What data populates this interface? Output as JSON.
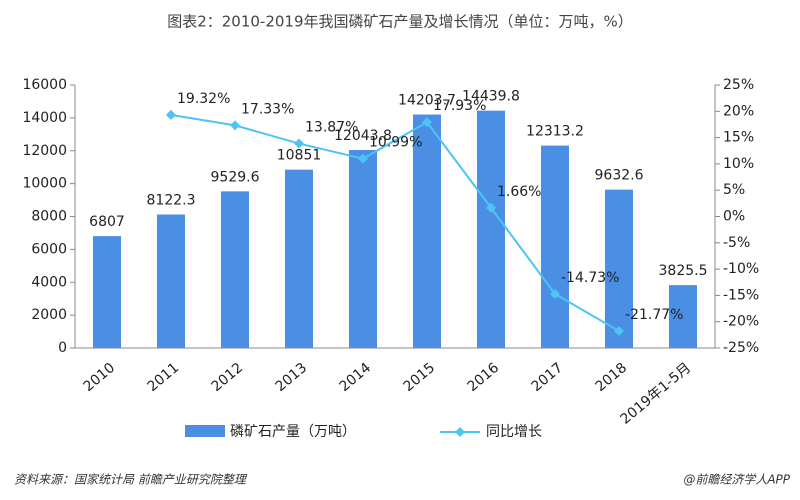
{
  "chart_data": {
    "type": "bar_line",
    "title": "图表2：2010-2019年我国磷矿石产量及增长情况（单位：万吨，%）",
    "categories": [
      "2010",
      "2011",
      "2012",
      "2013",
      "2014",
      "2015",
      "2016",
      "2017",
      "2018",
      "2019年1-5月"
    ],
    "series": [
      {
        "name": "磷矿石产量（万吨）",
        "color": "#4a8fe3",
        "values": [
          6807,
          8122.3,
          9529.6,
          10851,
          12043.8,
          14203.7,
          14439.8,
          12313.2,
          9632.6,
          3825.5
        ]
      },
      {
        "name": "同比增长",
        "color": "#4cc4f4",
        "axis": "y2",
        "values": [
          null,
          19.32,
          17.33,
          13.87,
          10.99,
          17.93,
          1.66,
          -14.73,
          -21.77,
          null
        ],
        "value_labels": [
          null,
          "19.32%",
          "17.33%",
          "13.87%",
          "10.99%",
          "17.93%",
          "1.66%",
          "-14.73%",
          "-21.77%",
          null
        ]
      }
    ],
    "ylim": [
      0,
      16000
    ],
    "yticks": [
      0,
      2000,
      4000,
      6000,
      8000,
      10000,
      12000,
      14000,
      16000
    ],
    "y2lim": [
      -25,
      25
    ],
    "y2ticks": [
      {
        "value": -25,
        "label": "-25%"
      },
      {
        "value": -20,
        "label": "-20%"
      },
      {
        "value": -15,
        "label": "-15%"
      },
      {
        "value": -10,
        "label": "-10%"
      },
      {
        "value": -5,
        "label": "-5%"
      },
      {
        "value": 0,
        "label": "0%"
      },
      {
        "value": 5,
        "label": "5%"
      },
      {
        "value": 10,
        "label": "10%"
      },
      {
        "value": 15,
        "label": "15%"
      },
      {
        "value": 20,
        "label": "20%"
      },
      {
        "value": 25,
        "label": "25%"
      }
    ],
    "source": "资料来源：国家统计局 前瞻产业研究院整理",
    "brand": "@前瞻经济学人APP"
  }
}
